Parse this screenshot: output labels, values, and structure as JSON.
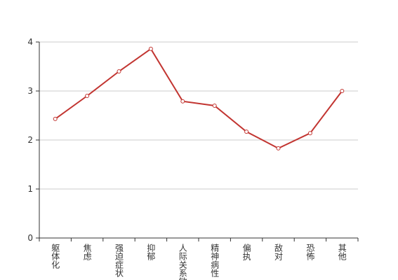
{
  "chart_data": {
    "type": "line",
    "categories": [
      "躯体化",
      "焦虑",
      "强迫症状",
      "抑郁",
      "人际关系敏感",
      "精神病性",
      "偏执",
      "敌对",
      "恐怖",
      "其他"
    ],
    "values": [
      2.43,
      2.9,
      3.4,
      3.86,
      2.79,
      2.7,
      2.17,
      1.83,
      2.14,
      3.0
    ],
    "color": "#c23531",
    "ylim": [
      0,
      4
    ],
    "yticks": [
      0,
      1,
      2,
      3,
      4
    ],
    "grid": true
  }
}
